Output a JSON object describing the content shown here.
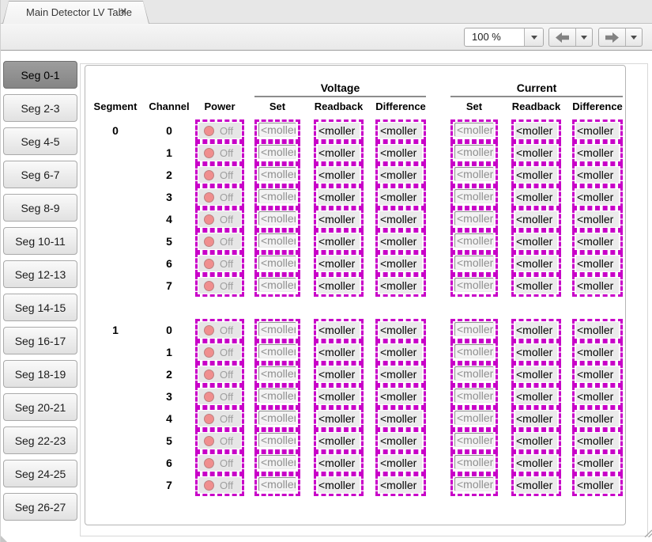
{
  "window": {
    "tab_label": "Main Detector LV Table",
    "tab_close_glyph": "×"
  },
  "toolbar": {
    "zoom_value": "100 %",
    "icons": {
      "back": "arrow-left",
      "forward": "arrow-right",
      "dropdown": "chevron-down"
    }
  },
  "sidebar": {
    "selected": "Seg 0-1",
    "items": [
      "Seg 0-1",
      "Seg 2-3",
      "Seg 4-5",
      "Seg 6-7",
      "Seg 8-9",
      "Seg 10-11",
      "Seg 12-13",
      "Seg 14-15",
      "Seg 16-17",
      "Seg 18-19",
      "Seg 20-21",
      "Seg 22-23",
      "Seg 24-25",
      "Seg 26-27"
    ]
  },
  "table": {
    "headers": {
      "segment": "Segment",
      "channel": "Channel",
      "power": "Power",
      "set": "Set",
      "readback": "Readback",
      "difference": "Difference"
    },
    "groups": {
      "voltage": "Voltage",
      "current": "Current"
    },
    "power_state_label": "Off",
    "fields": {
      "set_text": "<moller_",
      "readback_text": "<moller",
      "difference_text": "<moller"
    },
    "segments": [
      {
        "label": "0",
        "channels": [
          "0",
          "1",
          "2",
          "3",
          "4",
          "5",
          "6",
          "7"
        ]
      },
      {
        "label": "1",
        "channels": [
          "0",
          "1",
          "2",
          "3",
          "4",
          "5",
          "6",
          "7"
        ]
      }
    ]
  },
  "colors": {
    "pv_disconnected_border": "#c800c8",
    "led_off_fill": "#f08e8e",
    "led_off_border": "#bd8080",
    "selected_segment_button": "#858585"
  }
}
